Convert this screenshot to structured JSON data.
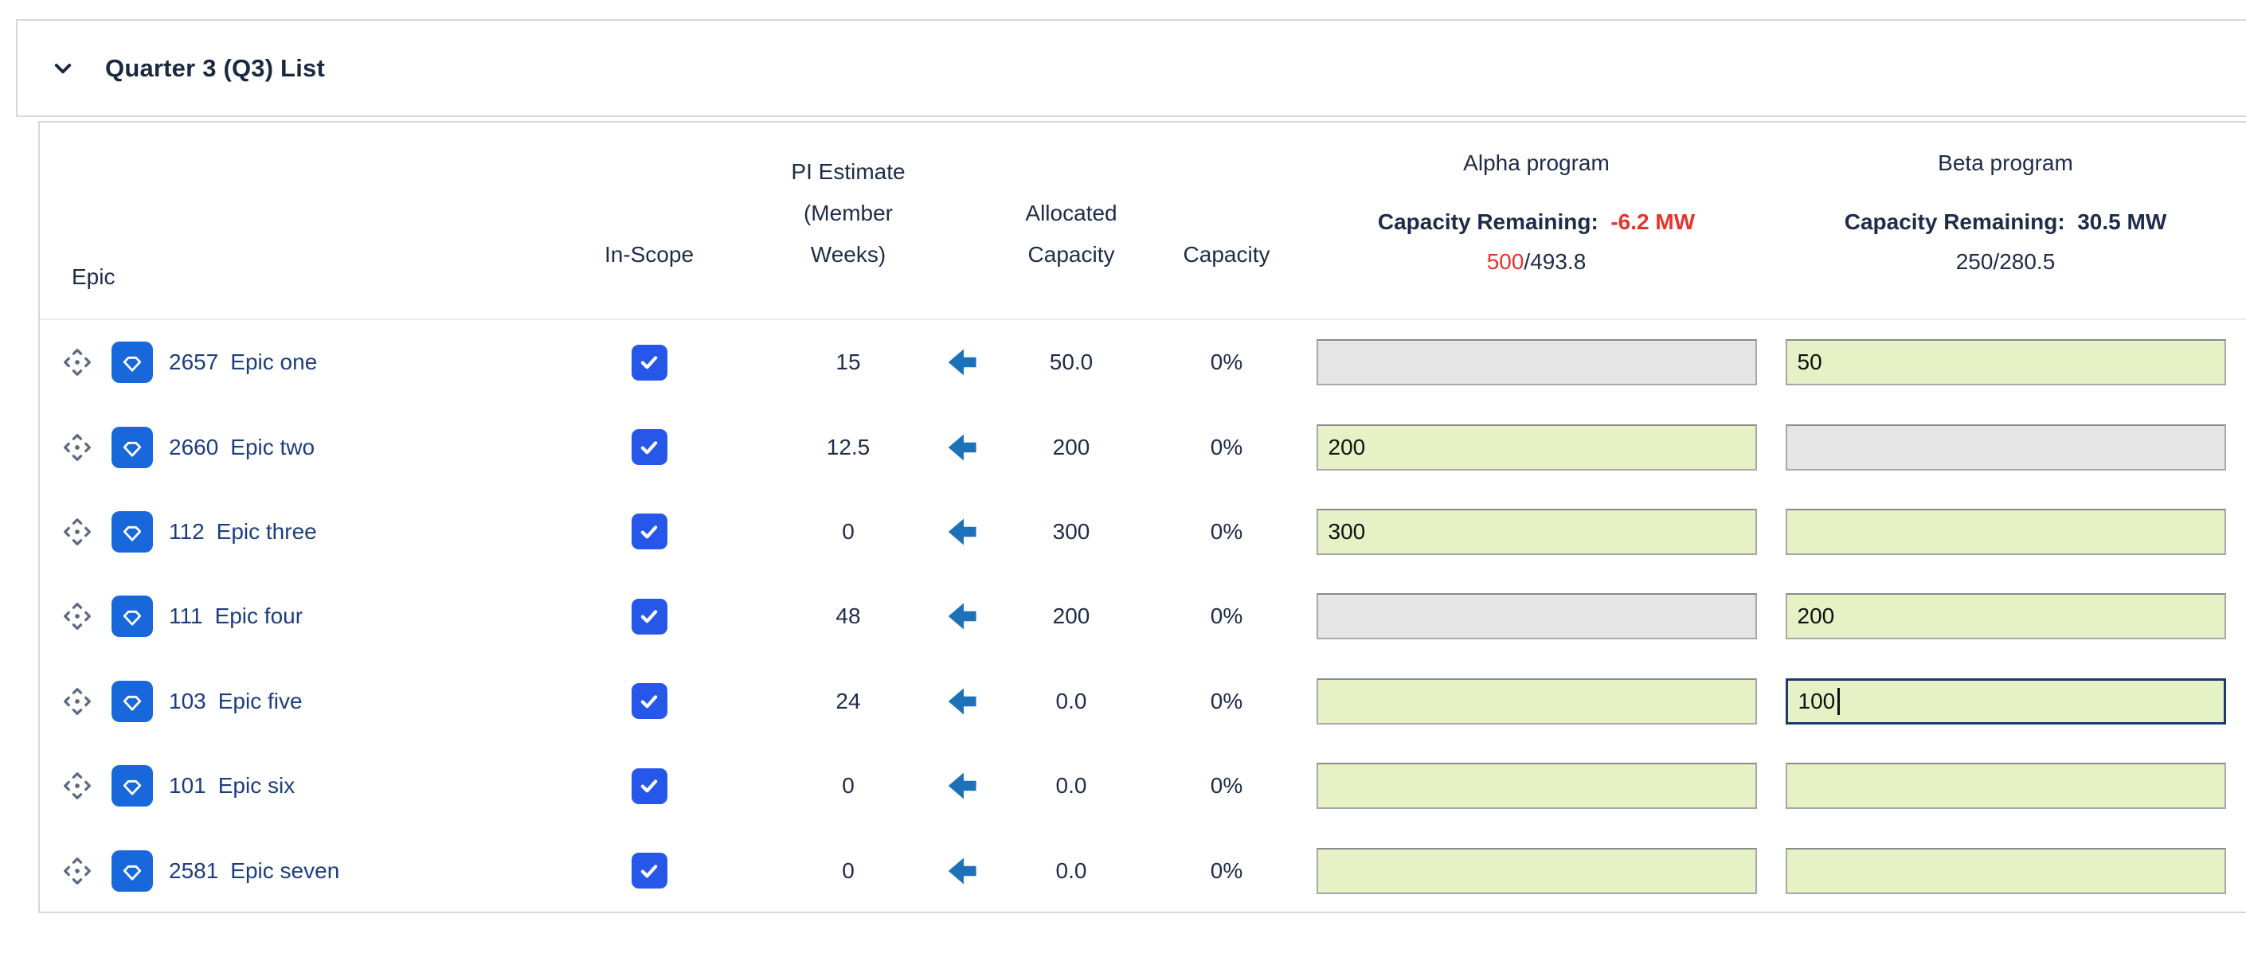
{
  "panel": {
    "title": "Quarter 3 (Q3) List"
  },
  "table": {
    "columns": {
      "epic": "Epic",
      "in_scope": "In-Scope",
      "pi_estimate_l1": "PI Estimate",
      "pi_estimate_l2": "(Member",
      "pi_estimate_l3": "Weeks)",
      "allocated_l1": "Allocated",
      "allocated_l2": "Capacity",
      "capacity": "Capacity"
    },
    "programs": [
      {
        "name": "Alpha program",
        "remaining_label": "Capacity Remaining:",
        "remaining_value": "-6.2 MW",
        "used": "500",
        "total": "/493.8",
        "negative": true
      },
      {
        "name": "Beta program",
        "remaining_label": "Capacity Remaining:",
        "remaining_value": "30.5 MW",
        "used": "250",
        "total": "/280.5",
        "negative": false
      }
    ],
    "rows": [
      {
        "id": "2657",
        "name": "Epic one",
        "in_scope": true,
        "estimate": "15",
        "allocated": "50.0",
        "capacity_pct": "0%",
        "alpha": {
          "state": "disabled",
          "value": ""
        },
        "beta": {
          "state": "enabled",
          "value": "50"
        }
      },
      {
        "id": "2660",
        "name": "Epic two",
        "in_scope": true,
        "estimate": "12.5",
        "allocated": "200",
        "capacity_pct": "0%",
        "alpha": {
          "state": "enabled",
          "value": "200"
        },
        "beta": {
          "state": "disabled",
          "value": ""
        }
      },
      {
        "id": "112",
        "name": "Epic three",
        "in_scope": true,
        "estimate": "0",
        "allocated": "300",
        "capacity_pct": "0%",
        "alpha": {
          "state": "enabled",
          "value": "300"
        },
        "beta": {
          "state": "enabled",
          "value": ""
        }
      },
      {
        "id": "111",
        "name": "Epic four",
        "in_scope": true,
        "estimate": "48",
        "allocated": "200",
        "capacity_pct": "0%",
        "alpha": {
          "state": "disabled",
          "value": ""
        },
        "beta": {
          "state": "enabled",
          "value": "200"
        }
      },
      {
        "id": "103",
        "name": "Epic five",
        "in_scope": true,
        "estimate": "24",
        "allocated": "0.0",
        "capacity_pct": "0%",
        "alpha": {
          "state": "enabled",
          "value": ""
        },
        "beta": {
          "state": "focused",
          "value": "100"
        }
      },
      {
        "id": "101",
        "name": "Epic six",
        "in_scope": true,
        "estimate": "0",
        "allocated": "0.0",
        "capacity_pct": "0%",
        "alpha": {
          "state": "enabled",
          "value": ""
        },
        "beta": {
          "state": "enabled",
          "value": ""
        }
      },
      {
        "id": "2581",
        "name": "Epic seven",
        "in_scope": true,
        "estimate": "0",
        "allocated": "0.0",
        "capacity_pct": "0%",
        "alpha": {
          "state": "enabled",
          "value": ""
        },
        "beta": {
          "state": "enabled",
          "value": ""
        }
      }
    ]
  },
  "colors": {
    "accent_red": "#e5342c",
    "input_enabled_green": "#e6f1c6",
    "input_disabled_gray": "#e5e5e5",
    "focus_border_navy": "#1b3c66",
    "epic_icon_blue": "#1868db",
    "checkbox_blue": "#2757e8",
    "arrow_blue": "#1d71b8",
    "link_navy": "#1d3d7d"
  }
}
